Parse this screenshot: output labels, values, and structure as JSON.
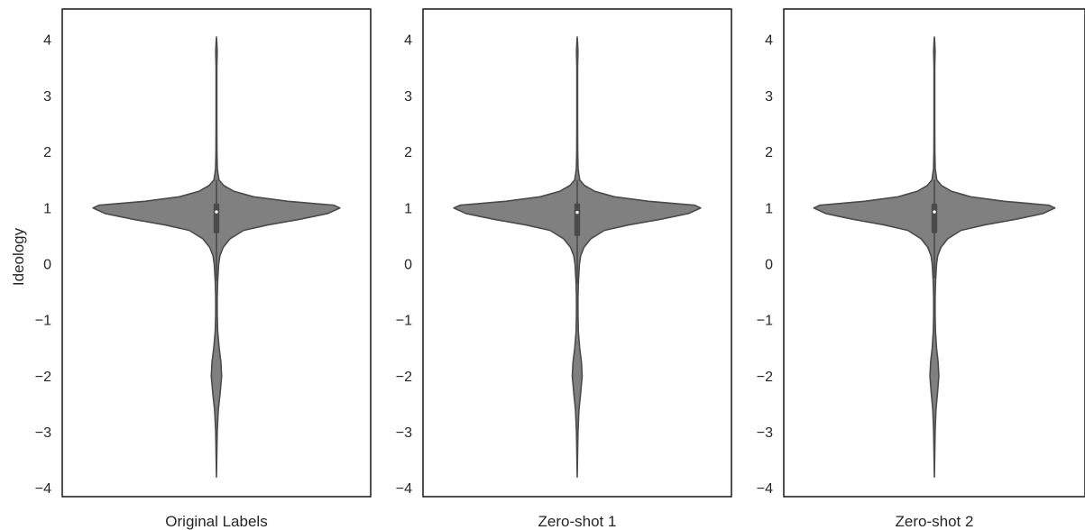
{
  "chart_data": {
    "type": "violin",
    "ylabel": "Ideology",
    "ylim": [
      -4.15,
      4.55
    ],
    "yticks": [
      -4,
      -3,
      -2,
      -1,
      0,
      1,
      2,
      3,
      4
    ],
    "grid": false,
    "colors": {
      "fill": "#808080",
      "stroke": "#4a4a4a",
      "box": "#4a4a4a",
      "median": "#ffffff"
    },
    "panels": [
      {
        "xlabel": "Original Labels",
        "min": -3.8,
        "max": 4.05,
        "quartiles": [
          0.55,
          0.93,
          1.08
        ],
        "whiskers": [
          -0.3,
          1.5
        ],
        "density": [
          [
            -3.8,
            0.0
          ],
          [
            -3.4,
            0.003
          ],
          [
            -3.0,
            0.006
          ],
          [
            -2.6,
            0.015
          ],
          [
            -2.3,
            0.03
          ],
          [
            -2.0,
            0.042
          ],
          [
            -1.75,
            0.036
          ],
          [
            -1.5,
            0.022
          ],
          [
            -1.2,
            0.01
          ],
          [
            -0.9,
            0.006
          ],
          [
            -0.6,
            0.006
          ],
          [
            -0.3,
            0.01
          ],
          [
            0.0,
            0.018
          ],
          [
            0.15,
            0.028
          ],
          [
            0.3,
            0.055
          ],
          [
            0.45,
            0.11
          ],
          [
            0.6,
            0.22
          ],
          [
            0.7,
            0.42
          ],
          [
            0.8,
            0.68
          ],
          [
            0.9,
            0.9
          ],
          [
            1.0,
            1.0
          ],
          [
            1.05,
            0.95
          ],
          [
            1.12,
            0.58
          ],
          [
            1.2,
            0.3
          ],
          [
            1.3,
            0.14
          ],
          [
            1.4,
            0.06
          ],
          [
            1.5,
            0.02
          ],
          [
            1.7,
            0.007
          ],
          [
            2.0,
            0.004
          ],
          [
            2.5,
            0.003
          ],
          [
            3.0,
            0.003
          ],
          [
            3.5,
            0.003
          ],
          [
            3.8,
            0.006
          ],
          [
            3.95,
            0.003
          ],
          [
            4.05,
            0.0
          ]
        ]
      },
      {
        "xlabel": "Zero-shot 1",
        "min": -3.8,
        "max": 4.05,
        "quartiles": [
          0.5,
          0.92,
          1.08
        ],
        "whiskers": [
          -0.35,
          1.5
        ],
        "density": [
          [
            -3.8,
            0.0
          ],
          [
            -3.4,
            0.003
          ],
          [
            -3.0,
            0.006
          ],
          [
            -2.6,
            0.014
          ],
          [
            -2.3,
            0.028
          ],
          [
            -2.0,
            0.04
          ],
          [
            -1.75,
            0.034
          ],
          [
            -1.5,
            0.02
          ],
          [
            -1.2,
            0.009
          ],
          [
            -0.9,
            0.006
          ],
          [
            -0.6,
            0.006
          ],
          [
            -0.3,
            0.01
          ],
          [
            0.0,
            0.018
          ],
          [
            0.15,
            0.028
          ],
          [
            0.3,
            0.055
          ],
          [
            0.45,
            0.11
          ],
          [
            0.6,
            0.22
          ],
          [
            0.7,
            0.42
          ],
          [
            0.8,
            0.68
          ],
          [
            0.9,
            0.9
          ],
          [
            1.0,
            1.0
          ],
          [
            1.05,
            0.95
          ],
          [
            1.12,
            0.58
          ],
          [
            1.2,
            0.3
          ],
          [
            1.3,
            0.14
          ],
          [
            1.4,
            0.06
          ],
          [
            1.5,
            0.02
          ],
          [
            1.7,
            0.007
          ],
          [
            2.0,
            0.004
          ],
          [
            2.5,
            0.003
          ],
          [
            3.0,
            0.003
          ],
          [
            3.5,
            0.003
          ],
          [
            3.8,
            0.006
          ],
          [
            3.95,
            0.003
          ],
          [
            4.05,
            0.0
          ]
        ]
      },
      {
        "xlabel": "Zero-shot 2",
        "min": -3.8,
        "max": 4.05,
        "quartiles": [
          0.55,
          0.93,
          1.08
        ],
        "whiskers": [
          -0.25,
          1.5
        ],
        "density": [
          [
            -3.8,
            0.0
          ],
          [
            -3.4,
            0.003
          ],
          [
            -3.0,
            0.006
          ],
          [
            -2.6,
            0.013
          ],
          [
            -2.3,
            0.026
          ],
          [
            -2.0,
            0.037
          ],
          [
            -1.75,
            0.031
          ],
          [
            -1.5,
            0.018
          ],
          [
            -1.2,
            0.009
          ],
          [
            -0.9,
            0.006
          ],
          [
            -0.6,
            0.006
          ],
          [
            -0.3,
            0.01
          ],
          [
            0.0,
            0.018
          ],
          [
            0.15,
            0.028
          ],
          [
            0.3,
            0.055
          ],
          [
            0.45,
            0.11
          ],
          [
            0.6,
            0.22
          ],
          [
            0.7,
            0.42
          ],
          [
            0.8,
            0.68
          ],
          [
            0.9,
            0.9
          ],
          [
            1.0,
            1.0
          ],
          [
            1.05,
            0.95
          ],
          [
            1.12,
            0.58
          ],
          [
            1.2,
            0.3
          ],
          [
            1.3,
            0.14
          ],
          [
            1.4,
            0.06
          ],
          [
            1.5,
            0.02
          ],
          [
            1.7,
            0.007
          ],
          [
            2.0,
            0.004
          ],
          [
            2.5,
            0.003
          ],
          [
            3.0,
            0.003
          ],
          [
            3.5,
            0.003
          ],
          [
            3.8,
            0.006
          ],
          [
            3.95,
            0.003
          ],
          [
            4.05,
            0.0
          ]
        ]
      }
    ]
  }
}
